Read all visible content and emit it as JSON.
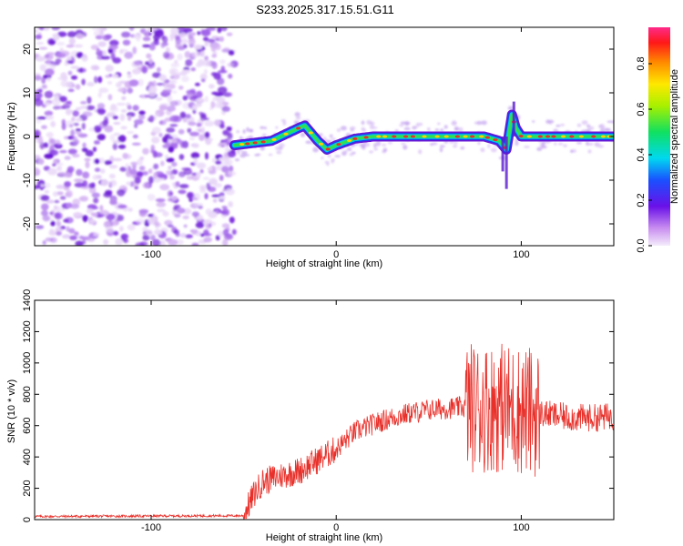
{
  "title": "S233.2025.317.15.51.G11",
  "colors": {
    "snr_line": "#e8302a",
    "ridge_core": "#e8302a",
    "noise": "#8a3be0"
  },
  "chart_data": [
    {
      "type": "heatmap",
      "name": "spectrogram",
      "xlabel": "Height of straight line (km)",
      "ylabel": "Frequency (Hz)",
      "xlim": [
        -163,
        150
      ],
      "ylim": [
        -25,
        25
      ],
      "xticks": [
        -100,
        0,
        100
      ],
      "xtick_labels": [
        "-100",
        "0",
        "100"
      ],
      "yticks": [
        -20,
        -10,
        0,
        10,
        20
      ],
      "ytick_labels": [
        "-20",
        "-10",
        "0",
        "10",
        "20"
      ],
      "noise_region_x": [
        -163,
        -55
      ],
      "ridge": {
        "x": [
          -55,
          -45,
          -35,
          -25,
          -20,
          -17,
          -10,
          -5,
          0,
          10,
          20,
          40,
          60,
          80,
          88,
          92,
          95,
          97,
          100,
          110,
          120,
          140,
          150
        ],
        "y": [
          -2,
          -1.5,
          -1,
          1,
          2,
          2.5,
          -1,
          -3,
          -2,
          -0.5,
          0,
          0,
          0,
          0,
          -1,
          -3,
          5,
          2,
          0,
          0,
          0,
          0,
          0
        ]
      },
      "colorbar": {
        "label": "Normalized spectral amplitude",
        "ticks": [
          0.0,
          0.2,
          0.4,
          0.6,
          0.8
        ],
        "tick_labels": [
          "0.0",
          "0.2",
          "0.4",
          "0.6",
          "0.8"
        ],
        "range": [
          0,
          0.96
        ]
      }
    },
    {
      "type": "line",
      "name": "snr",
      "xlabel": "Height of straight line (km)",
      "ylabel": "SNR (10 * v/v)",
      "xlim": [
        -163,
        150
      ],
      "ylim": [
        0,
        1400
      ],
      "xticks": [
        -100,
        0,
        100
      ],
      "xtick_labels": [
        "-100",
        "0",
        "100"
      ],
      "yticks": [
        0,
        200,
        400,
        600,
        800,
        1000,
        1200,
        1400
      ],
      "ytick_labels": [
        "0",
        "200",
        "400",
        "600",
        "800",
        "1000",
        "1200",
        "1400"
      ],
      "series": [
        {
          "name": "SNR",
          "envelope_x": [
            -163,
            -50,
            -45,
            -40,
            -30,
            -20,
            -10,
            0,
            10,
            20,
            30,
            40,
            50,
            60,
            70,
            80,
            90,
            100,
            110,
            120,
            130,
            140,
            150
          ],
          "envelope_y": [
            20,
            25,
            150,
            240,
            280,
            310,
            380,
            450,
            560,
            610,
            650,
            680,
            700,
            710,
            720,
            720,
            720,
            700,
            680,
            660,
            650,
            650,
            660
          ]
        }
      ]
    }
  ]
}
